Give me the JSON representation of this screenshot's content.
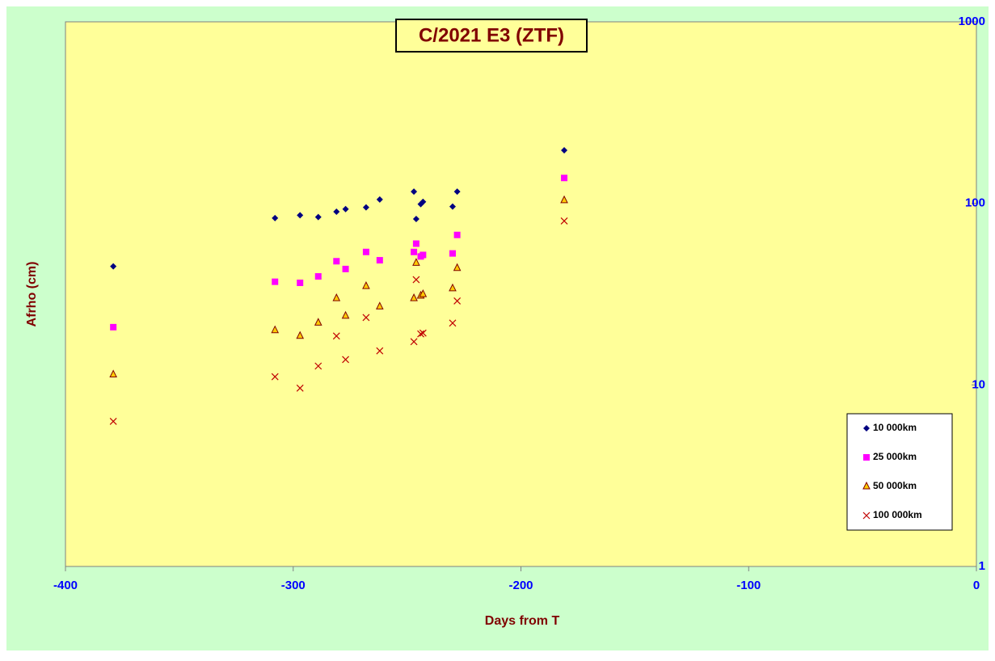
{
  "chart_data": {
    "type": "scatter",
    "title": "C/2021 E3 (ZTF)",
    "x_label": "Days from T",
    "y_label": "Afrho (cm)",
    "x": [
      -379,
      -308,
      -297,
      -289,
      -281,
      -277,
      -268,
      -262,
      -247,
      -246,
      -244,
      -243,
      -230,
      -228,
      -181
    ],
    "series": [
      {
        "name": "10 000km",
        "color": "#000080",
        "marker": "diamond",
        "values": [
          45,
          83,
          86,
          84,
          90,
          93,
          95,
          105,
          116,
          82,
          99,
          102,
          96,
          116,
          196
        ]
      },
      {
        "name": "25 000km",
        "color": "#ff00ff",
        "marker": "square",
        "values": [
          20.8,
          37,
          36.5,
          39.6,
          48,
          43.5,
          54,
          48.6,
          54,
          60,
          51,
          52,
          53,
          67,
          138
        ]
      },
      {
        "name": "50 000km",
        "color": "#ffcc00",
        "marker": "triangle",
        "values": [
          11.4,
          20,
          18.6,
          22,
          30,
          24,
          35,
          27,
          30,
          47,
          31,
          31.6,
          34,
          44,
          104
        ]
      },
      {
        "name": "100 000km",
        "color": "#c00000",
        "marker": "x",
        "values": [
          6.3,
          11.1,
          9.6,
          12.7,
          18.6,
          13.8,
          23.5,
          15.4,
          17.3,
          38,
          19.1,
          19.3,
          21.9,
          29,
          80
        ]
      }
    ],
    "xlim": [
      -400,
      0
    ],
    "xticks": [
      -400,
      -300,
      -200,
      -100,
      0
    ],
    "ylim": [
      1,
      1000
    ],
    "yticks": [
      1,
      10,
      100,
      1000
    ],
    "y_scale": "log",
    "legend": "lower right"
  }
}
